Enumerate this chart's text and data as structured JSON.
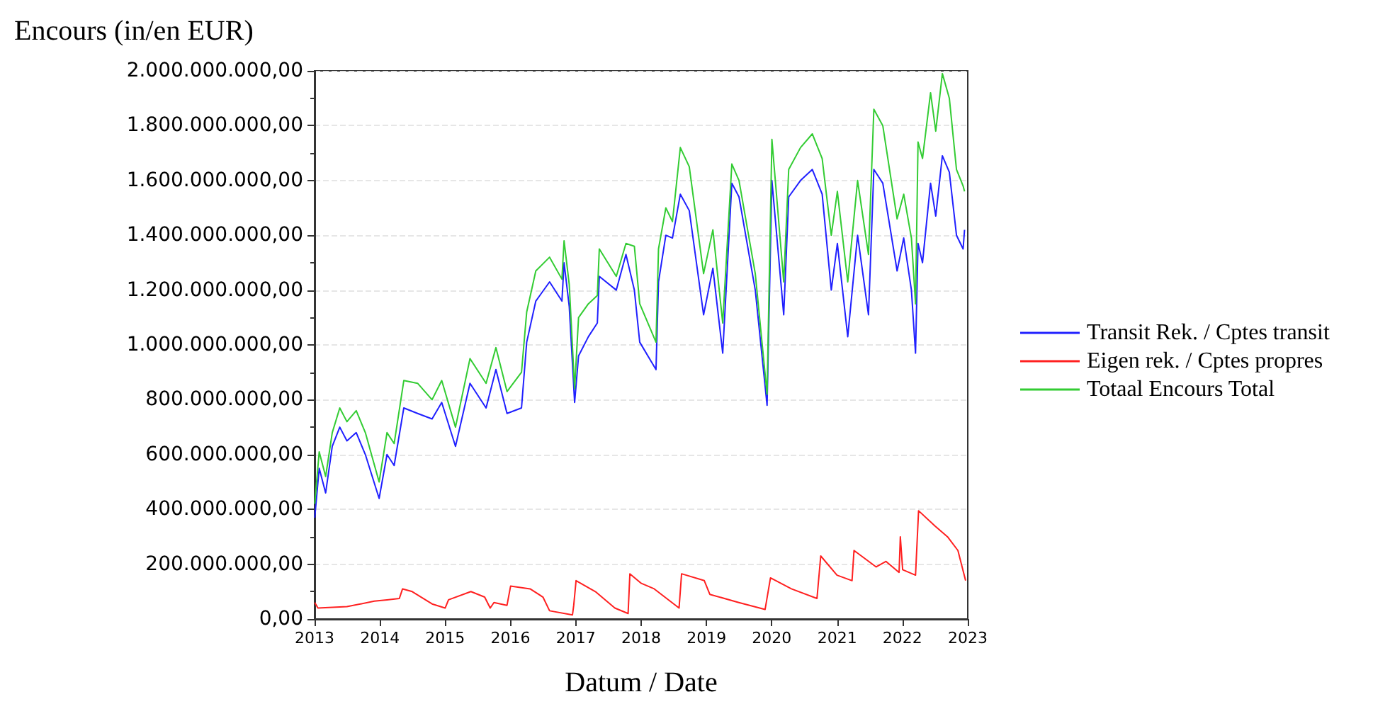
{
  "chart_data": {
    "type": "line",
    "ylabel": "Encours (in/en EUR)",
    "xlabel": "Datum / Date",
    "xlim": [
      "2013-01-01",
      "2023-01-01"
    ],
    "xticks": [
      {
        "value": "2013-01-01",
        "label": "2013"
      },
      {
        "value": "2014-01-01",
        "label": "2014"
      },
      {
        "value": "2015-01-01",
        "label": "2015"
      },
      {
        "value": "2016-01-01",
        "label": "2016"
      },
      {
        "value": "2017-01-01",
        "label": "2017"
      },
      {
        "value": "2018-01-01",
        "label": "2018"
      },
      {
        "value": "2019-01-01",
        "label": "2019"
      },
      {
        "value": "2020-01-01",
        "label": "2020"
      },
      {
        "value": "2021-01-01",
        "label": "2021"
      },
      {
        "value": "2022-01-01",
        "label": "2022"
      },
      {
        "value": "2023-01-01",
        "label": "2023"
      }
    ],
    "ylim": [
      0,
      2000000000
    ],
    "yticks": [
      {
        "value": 0,
        "label": "0,00"
      },
      {
        "value": 200000000,
        "label": "200.000.000,00"
      },
      {
        "value": 400000000,
        "label": "400.000.000,00"
      },
      {
        "value": 600000000,
        "label": "600.000.000,00"
      },
      {
        "value": 800000000,
        "label": "800.000.000,00"
      },
      {
        "value": 1000000000,
        "label": "1.000.000.000,00"
      },
      {
        "value": 1200000000,
        "label": "1.200.000.000,00"
      },
      {
        "value": 1400000000,
        "label": "1.400.000.000,00"
      },
      {
        "value": 1600000000,
        "label": "1.600.000.000,00"
      },
      {
        "value": 1800000000,
        "label": "1.800.000.000,00"
      },
      {
        "value": 2000000000,
        "label": "2.000.000.000,00"
      }
    ],
    "grid": "y",
    "legend": "right",
    "marker": "none",
    "series": [
      {
        "name": "Transit Rek. / Cptes transit",
        "color": "#2020ff",
        "x": [
          "2013-01-02",
          "2013-01-27",
          "2013-03-04",
          "2013-04-10",
          "2013-05-22",
          "2013-07-01",
          "2013-08-22",
          "2013-10-12",
          "2013-12-28",
          "2014-02-10",
          "2014-03-22",
          "2014-05-15",
          "2014-07-31",
          "2014-10-20",
          "2014-12-13",
          "2015-02-28",
          "2015-05-20",
          "2015-08-18",
          "2015-10-12",
          "2015-12-13",
          "2016-03-03",
          "2016-04-01",
          "2016-05-22",
          "2016-08-07",
          "2016-10-15",
          "2016-10-27",
          "2016-11-25",
          "2016-12-25",
          "2017-01-16",
          "2017-03-12",
          "2017-05-01",
          "2017-05-12",
          "2017-08-15",
          "2017-10-08",
          "2017-11-24",
          "2017-12-24",
          "2018-03-25",
          "2018-04-08",
          "2018-05-19",
          "2018-06-25",
          "2018-08-08",
          "2018-09-27",
          "2018-12-16",
          "2019-02-06",
          "2019-04-02",
          "2019-05-23",
          "2019-07-02",
          "2019-10-01",
          "2019-12-06",
          "2020-01-02",
          "2020-03-08",
          "2020-04-05",
          "2020-06-10",
          "2020-08-15",
          "2020-10-09",
          "2020-11-29",
          "2021-01-02",
          "2021-03-01",
          "2021-04-25",
          "2021-06-25",
          "2021-07-25",
          "2021-09-13",
          "2021-12-02",
          "2022-01-08",
          "2022-02-20",
          "2022-03-15",
          "2022-03-29",
          "2022-04-23",
          "2022-06-07",
          "2022-07-06",
          "2022-08-12",
          "2022-09-20",
          "2022-10-30",
          "2022-12-06",
          "2022-12-14"
        ],
        "values": [
          370000000,
          550000000,
          460000000,
          630000000,
          700000000,
          650000000,
          680000000,
          600000000,
          440000000,
          600000000,
          560000000,
          770000000,
          750000000,
          730000000,
          790000000,
          630000000,
          860000000,
          770000000,
          910000000,
          750000000,
          770000000,
          1010000000,
          1160000000,
          1230000000,
          1160000000,
          1300000000,
          1140000000,
          790000000,
          960000000,
          1030000000,
          1080000000,
          1250000000,
          1200000000,
          1330000000,
          1200000000,
          1010000000,
          910000000,
          1230000000,
          1400000000,
          1390000000,
          1550000000,
          1490000000,
          1110000000,
          1280000000,
          970000000,
          1590000000,
          1540000000,
          1200000000,
          780000000,
          1600000000,
          1110000000,
          1540000000,
          1600000000,
          1640000000,
          1550000000,
          1200000000,
          1370000000,
          1030000000,
          1400000000,
          1110000000,
          1640000000,
          1590000000,
          1270000000,
          1390000000,
          1200000000,
          970000000,
          1370000000,
          1300000000,
          1590000000,
          1470000000,
          1690000000,
          1630000000,
          1400000000,
          1350000000,
          1420000000
        ]
      },
      {
        "name": "Eigen rek. / Cptes propres",
        "color": "#ff2020",
        "x": [
          "2013-01-02",
          "2013-01-20",
          "2013-07-01",
          "2013-12-01",
          "2014-02-10",
          "2014-04-20",
          "2014-05-08",
          "2014-07-01",
          "2014-10-20",
          "2015-01-01",
          "2015-01-20",
          "2015-05-25",
          "2015-08-10",
          "2015-09-10",
          "2015-10-01",
          "2015-12-13",
          "2016-01-02",
          "2016-04-20",
          "2016-07-01",
          "2016-08-07",
          "2016-12-13",
          "2016-12-20",
          "2017-01-02",
          "2017-04-20",
          "2017-08-07",
          "2017-10-20",
          "2017-10-30",
          "2018-01-02",
          "2018-03-15",
          "2018-08-01",
          "2018-08-15",
          "2018-12-20",
          "2019-01-20",
          "2019-07-01",
          "2019-11-25",
          "2019-12-25",
          "2020-04-20",
          "2020-09-10",
          "2020-10-01",
          "2020-12-31",
          "2021-03-25",
          "2021-04-05",
          "2021-08-07",
          "2021-10-01",
          "2021-12-13",
          "2021-12-20",
          "2022-01-02",
          "2022-03-15",
          "2022-04-01",
          "2022-07-01",
          "2022-09-10",
          "2022-11-07",
          "2022-12-20"
        ],
        "values": [
          60000000,
          40000000,
          45000000,
          65000000,
          70000000,
          75000000,
          110000000,
          100000000,
          55000000,
          40000000,
          70000000,
          100000000,
          80000000,
          40000000,
          60000000,
          50000000,
          120000000,
          110000000,
          80000000,
          30000000,
          15000000,
          50000000,
          140000000,
          100000000,
          40000000,
          20000000,
          165000000,
          130000000,
          110000000,
          40000000,
          165000000,
          140000000,
          90000000,
          60000000,
          35000000,
          150000000,
          110000000,
          75000000,
          230000000,
          160000000,
          140000000,
          250000000,
          190000000,
          210000000,
          170000000,
          300000000,
          180000000,
          160000000,
          395000000,
          340000000,
          300000000,
          250000000,
          140000000
        ]
      },
      {
        "name": "Totaal Encours Total",
        "color": "#33cc33",
        "x": [
          "2013-01-02",
          "2013-01-27",
          "2013-03-04",
          "2013-04-10",
          "2013-05-22",
          "2013-07-01",
          "2013-08-22",
          "2013-10-12",
          "2013-12-28",
          "2014-02-10",
          "2014-03-22",
          "2014-05-15",
          "2014-07-31",
          "2014-10-20",
          "2014-12-13",
          "2015-02-28",
          "2015-05-20",
          "2015-08-18",
          "2015-10-12",
          "2015-12-13",
          "2016-03-03",
          "2016-04-01",
          "2016-05-22",
          "2016-08-07",
          "2016-10-15",
          "2016-10-27",
          "2016-11-25",
          "2016-12-25",
          "2017-01-16",
          "2017-03-12",
          "2017-05-01",
          "2017-05-12",
          "2017-08-15",
          "2017-10-08",
          "2017-11-24",
          "2017-12-24",
          "2018-03-25",
          "2018-04-08",
          "2018-05-19",
          "2018-06-25",
          "2018-08-08",
          "2018-09-27",
          "2018-12-16",
          "2019-02-06",
          "2019-04-02",
          "2019-05-23",
          "2019-07-02",
          "2019-10-01",
          "2019-12-06",
          "2020-01-02",
          "2020-03-08",
          "2020-04-05",
          "2020-06-10",
          "2020-08-15",
          "2020-10-09",
          "2020-11-29",
          "2021-01-02",
          "2021-03-01",
          "2021-04-25",
          "2021-06-25",
          "2021-07-25",
          "2021-09-13",
          "2021-12-02",
          "2022-01-08",
          "2022-02-20",
          "2022-03-15",
          "2022-03-29",
          "2022-04-23",
          "2022-06-07",
          "2022-07-06",
          "2022-08-12",
          "2022-09-20",
          "2022-10-30",
          "2022-12-06",
          "2022-12-14"
        ],
        "values": [
          420000000,
          610000000,
          520000000,
          680000000,
          770000000,
          720000000,
          760000000,
          680000000,
          500000000,
          680000000,
          640000000,
          870000000,
          860000000,
          800000000,
          870000000,
          700000000,
          950000000,
          860000000,
          990000000,
          830000000,
          900000000,
          1120000000,
          1270000000,
          1320000000,
          1240000000,
          1380000000,
          1220000000,
          840000000,
          1100000000,
          1150000000,
          1180000000,
          1350000000,
          1250000000,
          1370000000,
          1360000000,
          1150000000,
          1010000000,
          1350000000,
          1500000000,
          1450000000,
          1720000000,
          1650000000,
          1260000000,
          1420000000,
          1080000000,
          1660000000,
          1600000000,
          1260000000,
          820000000,
          1750000000,
          1230000000,
          1640000000,
          1720000000,
          1770000000,
          1680000000,
          1400000000,
          1560000000,
          1230000000,
          1600000000,
          1330000000,
          1860000000,
          1800000000,
          1460000000,
          1550000000,
          1390000000,
          1150000000,
          1740000000,
          1680000000,
          1920000000,
          1780000000,
          1990000000,
          1900000000,
          1640000000,
          1580000000,
          1560000000
        ]
      }
    ]
  }
}
